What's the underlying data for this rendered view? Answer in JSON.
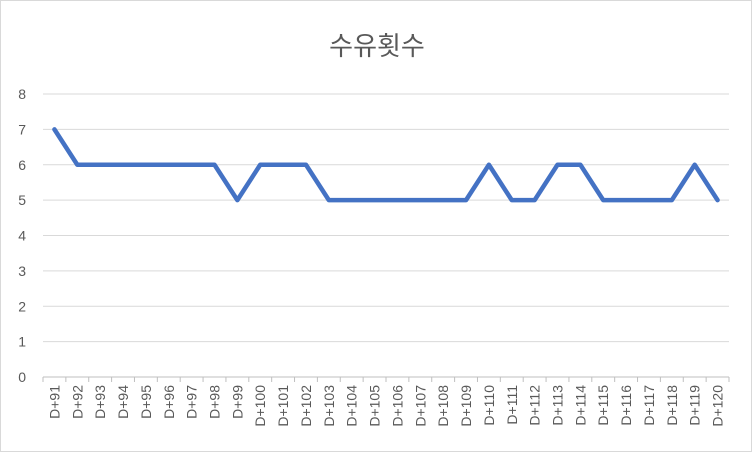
{
  "chart_data": {
    "type": "line",
    "title": "수유횟수",
    "xlabel": "",
    "ylabel": "",
    "ylim": [
      0,
      8
    ],
    "yticks": [
      0,
      1,
      2,
      3,
      4,
      5,
      6,
      7,
      8
    ],
    "grid": true,
    "legend": "none",
    "categories": [
      "D+91",
      "D+92",
      "D+93",
      "D+94",
      "D+95",
      "D+96",
      "D+97",
      "D+98",
      "D+99",
      "D+100",
      "D+101",
      "D+102",
      "D+103",
      "D+104",
      "D+105",
      "D+106",
      "D+107",
      "D+108",
      "D+109",
      "D+110",
      "D+111",
      "D+112",
      "D+113",
      "D+114",
      "D+115",
      "D+116",
      "D+117",
      "D+118",
      "D+119",
      "D+120"
    ],
    "series": [
      {
        "color": "#4472c4",
        "values": [
          7,
          6,
          6,
          6,
          6,
          6,
          6,
          6,
          5,
          6,
          6,
          6,
          5,
          5,
          5,
          5,
          5,
          5,
          5,
          6,
          5,
          5,
          6,
          6,
          5,
          5,
          5,
          5,
          6,
          5
        ]
      }
    ]
  }
}
